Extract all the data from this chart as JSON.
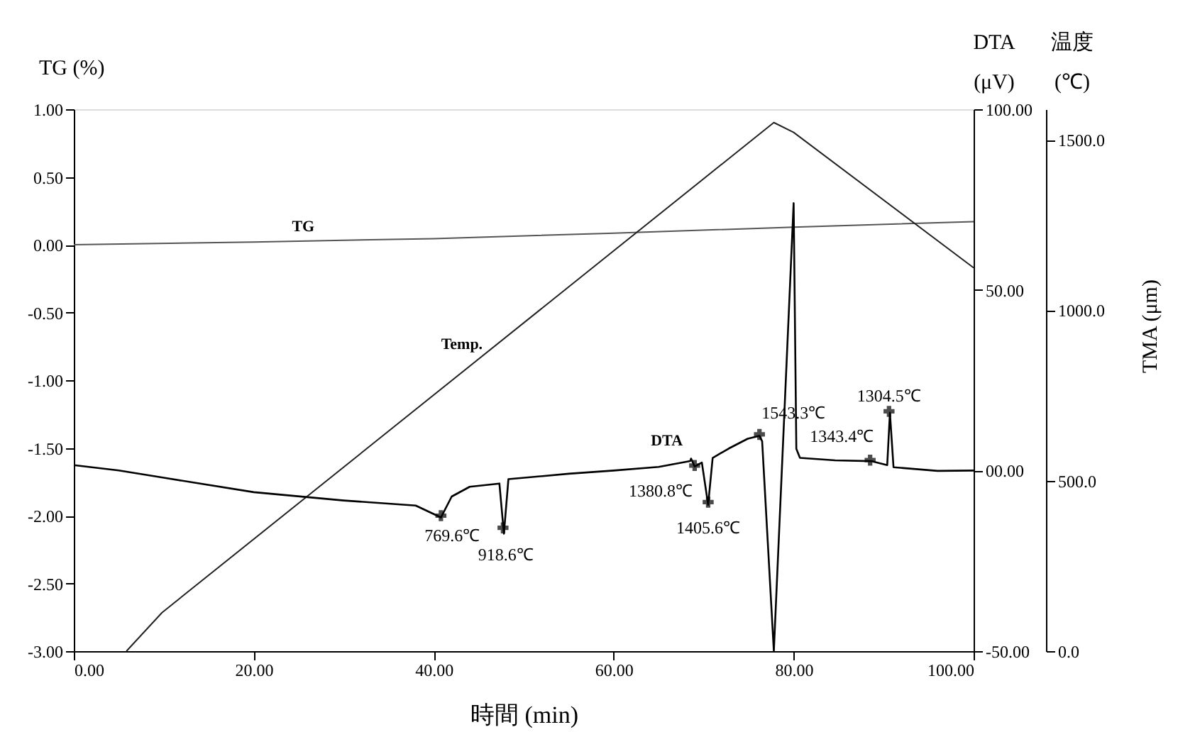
{
  "chart_data": {
    "type": "line",
    "xlabel": "時間 (min)",
    "ylabel": "TG (%)",
    "y2label": "DTA (μV)",
    "y3label": "温度 (℃)",
    "xlim": [
      0,
      100
    ],
    "xticks": [
      {
        "value": 0,
        "label": "0.00"
      },
      {
        "value": 20,
        "label": "20.00"
      },
      {
        "value": 40,
        "label": "40.00"
      },
      {
        "value": 60,
        "label": "60.00"
      },
      {
        "value": 80,
        "label": "80.00"
      },
      {
        "value": 100,
        "label": "100.00"
      }
    ],
    "ylim": [
      -3,
      1
    ],
    "yticks": [
      {
        "value": 1,
        "label": "1.00"
      },
      {
        "value": 0.5,
        "label": "0.50"
      },
      {
        "value": 0,
        "label": "0.00"
      },
      {
        "value": -0.5,
        "label": "-0.50"
      },
      {
        "value": -1,
        "label": "-1.00"
      },
      {
        "value": -1.5,
        "label": "-1.50"
      },
      {
        "value": -2,
        "label": "-2.00"
      },
      {
        "value": -2.5,
        "label": "-2.50"
      },
      {
        "value": -3,
        "label": "-3.00"
      }
    ],
    "y2lim": [
      -50,
      100
    ],
    "y2ticks": [
      {
        "value": -50,
        "label": "-50.00"
      },
      {
        "value": 0,
        "label": "00.00"
      },
      {
        "value": 50,
        "label": "50.00"
      },
      {
        "value": 100,
        "label": "100.00"
      }
    ],
    "y3lim": [
      0,
      1590
    ],
    "y3ticks": [
      {
        "value": 0,
        "label": "0.0"
      },
      {
        "value": 500,
        "label": "500.0"
      },
      {
        "value": 1000,
        "label": "1000.0"
      },
      {
        "value": 1500,
        "label": "1500.0"
      }
    ],
    "series": [
      {
        "name": "TG",
        "color": "#555555",
        "axis": "y",
        "x": [
          0,
          20,
          40,
          60,
          80,
          100
        ],
        "values": [
          0,
          0.02,
          0.045,
          0.085,
          0.13,
          0.17
        ]
      },
      {
        "name": "Temp.",
        "color": "#222222",
        "axis": "y3",
        "x": [
          5.85,
          9.8,
          77.8,
          80,
          100
        ],
        "values": [
          0,
          113,
          1551,
          1522,
          1125
        ]
      },
      {
        "name": "DTA",
        "color": "#000000",
        "axis": "y2",
        "x": [
          0,
          5,
          10,
          20,
          30,
          38,
          40.8,
          42,
          44,
          47.3,
          47.8,
          48.3,
          55,
          60,
          65,
          68.5,
          68.6,
          69,
          69.8,
          70.5,
          71,
          72.8,
          74.9,
          76.2,
          76.5,
          77.8,
          80,
          80.3,
          80.7,
          84.6,
          88.6,
          90.4,
          90.7,
          91.1,
          96,
          100
        ],
        "values": [
          1.5,
          0,
          -2,
          -6,
          -8.3,
          -9.7,
          -13,
          -7.2,
          -4.5,
          -3.6,
          -17.5,
          -2.4,
          -0.9,
          0,
          1,
          2.6,
          3.3,
          1.1,
          2.2,
          -9.5,
          3.5,
          6.1,
          8.8,
          9.6,
          8.1,
          -50,
          74,
          6,
          3.5,
          2.8,
          2.6,
          1.5,
          16,
          0.9,
          -0.1,
          0
        ]
      }
    ],
    "annotations": [
      "TMA (μm)",
      {
        "text": "769.6℃",
        "x": 40.8,
        "y": -2.0
      },
      {
        "text": "918.6℃",
        "x": 47.7,
        "y": -2.09
      },
      {
        "text": "1380.8℃",
        "x": 69.0,
        "y": -1.63
      },
      {
        "text": "1405.6℃",
        "x": 70.5,
        "y": -1.9
      },
      {
        "text": "1543.3℃",
        "x": 76.2,
        "y": -1.4
      },
      {
        "text": "1343.4℃",
        "x": 88.5,
        "y": -1.59
      },
      {
        "text": "1304.5℃",
        "x": 90.6,
        "y": -1.23
      }
    ],
    "grid": false
  }
}
